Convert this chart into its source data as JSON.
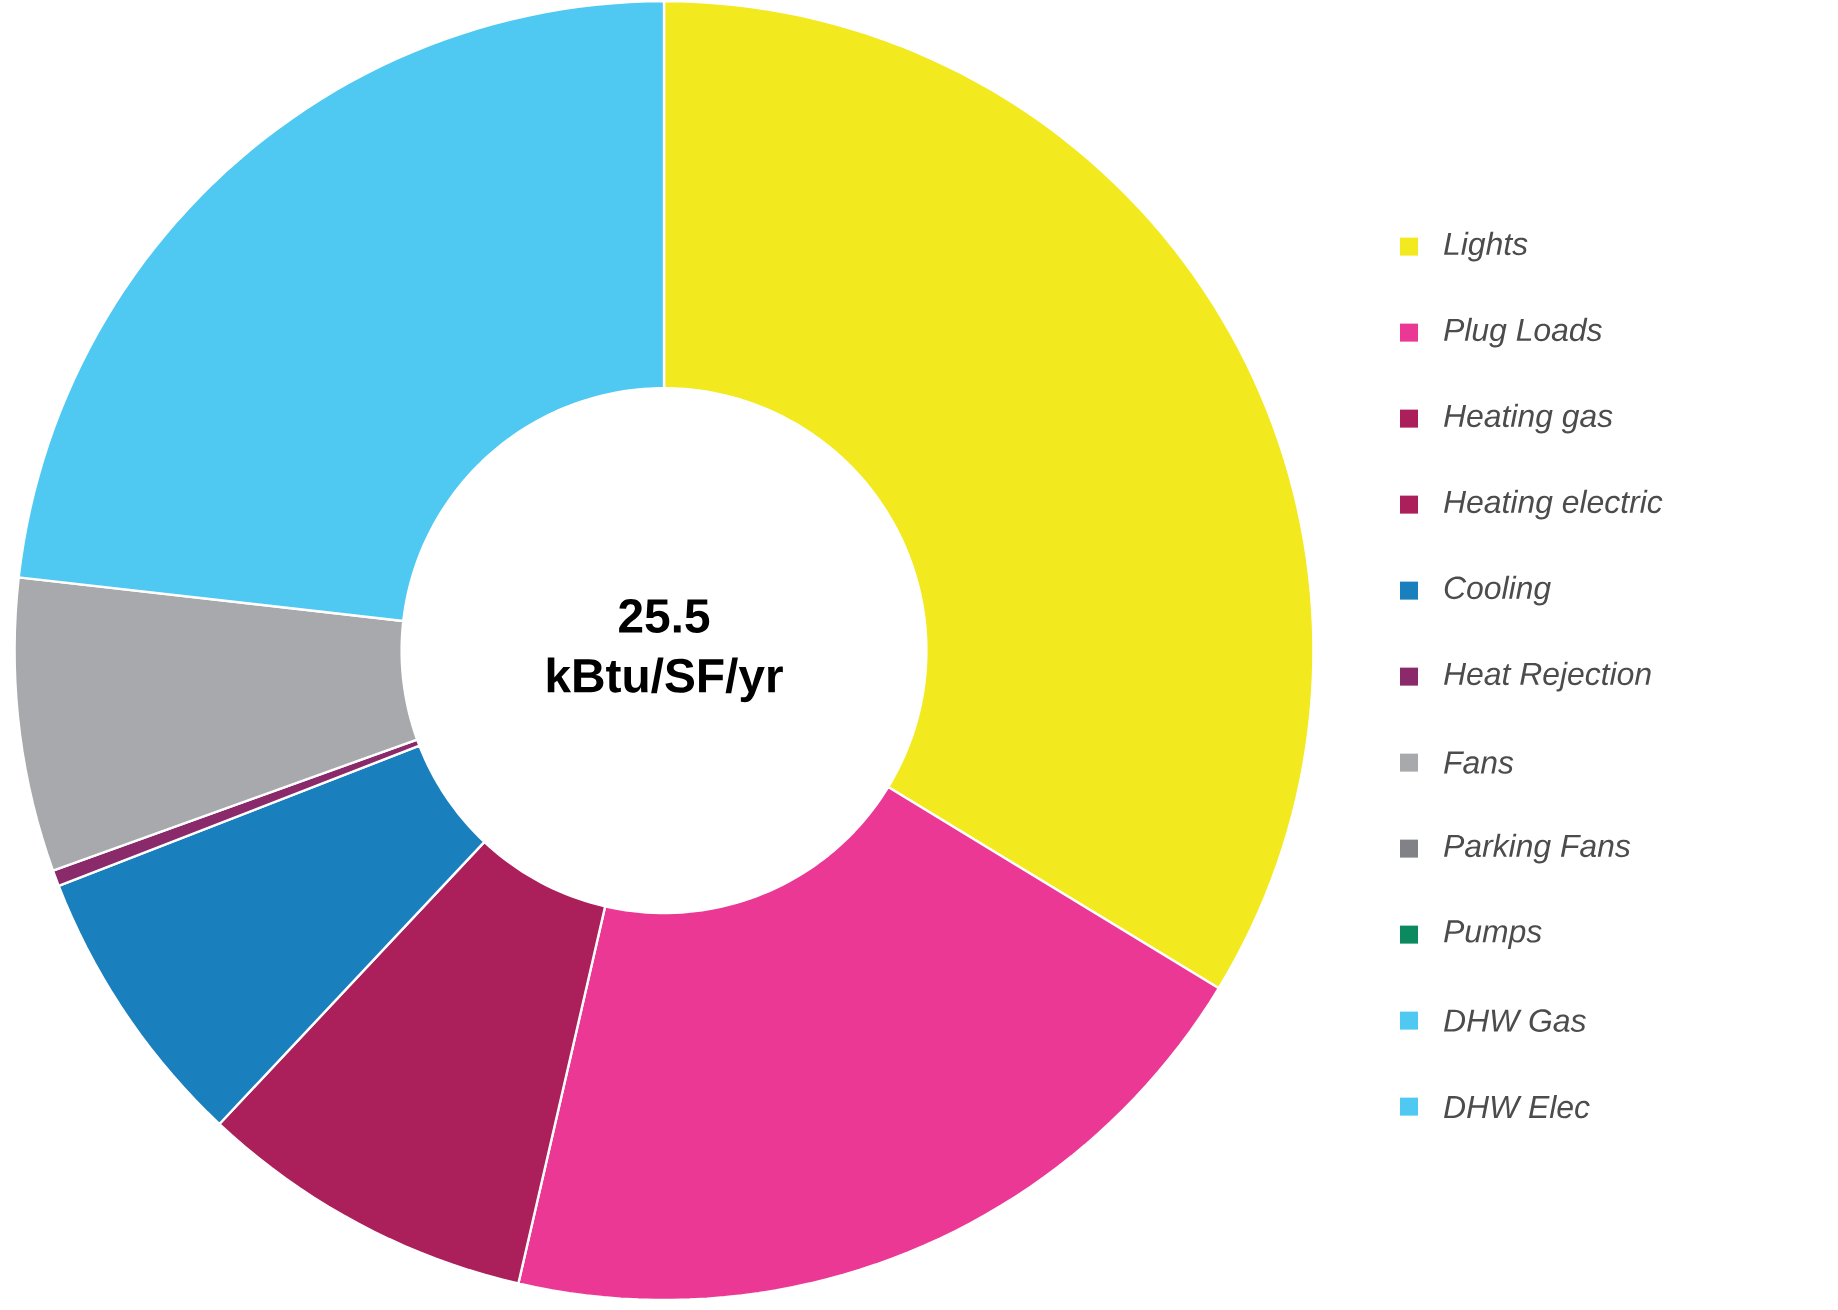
{
  "chart_data": {
    "type": "donut",
    "categories": [
      "Lights",
      "Plug Loads",
      "Heating gas",
      "Heating electric",
      "Cooling",
      "Heat Rejection",
      "Fans",
      "Parking Fans",
      "Pumps",
      "DHW Gas",
      "DHW Elec"
    ],
    "values": [
      33.7,
      19.9,
      8.4,
      0,
      7.1,
      0.4,
      7.3,
      0,
      0,
      23.2,
      0
    ],
    "colors": [
      "#f2ea1f",
      "#ec3895",
      "#ab1f5a",
      "#ab1f5a",
      "#1a7fbd",
      "#8b2a6b",
      "#a7a9ac",
      "#808285",
      "#0a8a5e",
      "#4fc8f2",
      "#4fc8f2"
    ],
    "annotations": [
      "25.5",
      "kBtu/SF/yr"
    ],
    "legend": "right"
  }
}
